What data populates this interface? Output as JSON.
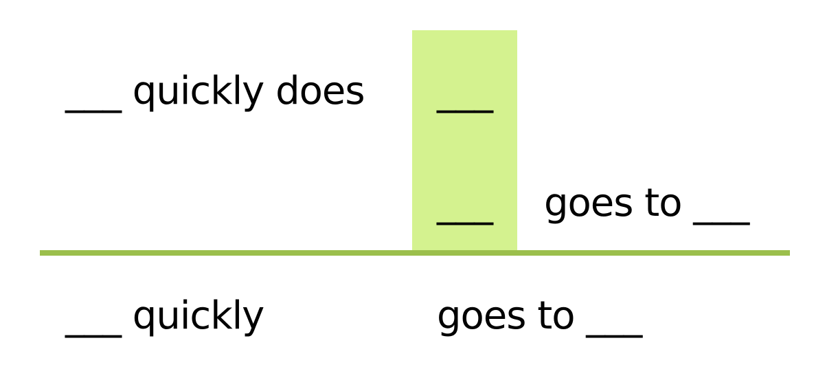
{
  "colors": {
    "highlight": "#d4f28f",
    "divider": "#9bbf4c",
    "text": "#000000"
  },
  "top": {
    "row1_left": "___ quickly does",
    "row1_highlight": "___",
    "row2_highlight": "___",
    "row2_right": "goes to ___"
  },
  "bottom": {
    "left": "___ quickly",
    "right": "goes to ___"
  }
}
